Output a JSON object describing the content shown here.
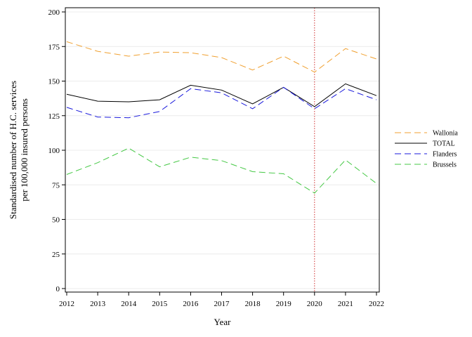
{
  "chart_data": {
    "type": "line",
    "xlabel": "Year",
    "ylabel_lines": [
      "Standardised number of H.C. services",
      "per 100,000 insured persons"
    ],
    "x": [
      2012,
      2013,
      2014,
      2015,
      2016,
      2017,
      2018,
      2019,
      2020,
      2021,
      2022
    ],
    "ylim": [
      0,
      200
    ],
    "y_ticks": [
      0,
      25,
      50,
      75,
      100,
      125,
      150,
      175,
      200
    ],
    "grid": "horizontal",
    "reference_line_x": 2020,
    "legend_position": "right",
    "series": [
      {
        "name": "Wallonia",
        "color": "#f0a030",
        "dash": "dashed",
        "values": [
          178.5,
          171.5,
          168,
          171,
          170.5,
          167,
          158,
          168,
          156.5,
          173.5,
          166
        ]
      },
      {
        "name": "TOTAL",
        "color": "#000000",
        "dash": "solid",
        "values": [
          140.5,
          135.5,
          135,
          136.5,
          147,
          143.5,
          133.5,
          145.5,
          131.5,
          148,
          139.5
        ]
      },
      {
        "name": "Flanders",
        "color": "#1a1adc",
        "dash": "dashed",
        "values": [
          131,
          124,
          123.5,
          128,
          144.5,
          141.5,
          130,
          145.5,
          130,
          144.5,
          136.5
        ]
      },
      {
        "name": "Brussels",
        "color": "#44c844",
        "dash": "dashed",
        "values": [
          82.5,
          91,
          101.5,
          88,
          95,
          92.5,
          84.5,
          83,
          69,
          93,
          76
        ]
      }
    ]
  }
}
